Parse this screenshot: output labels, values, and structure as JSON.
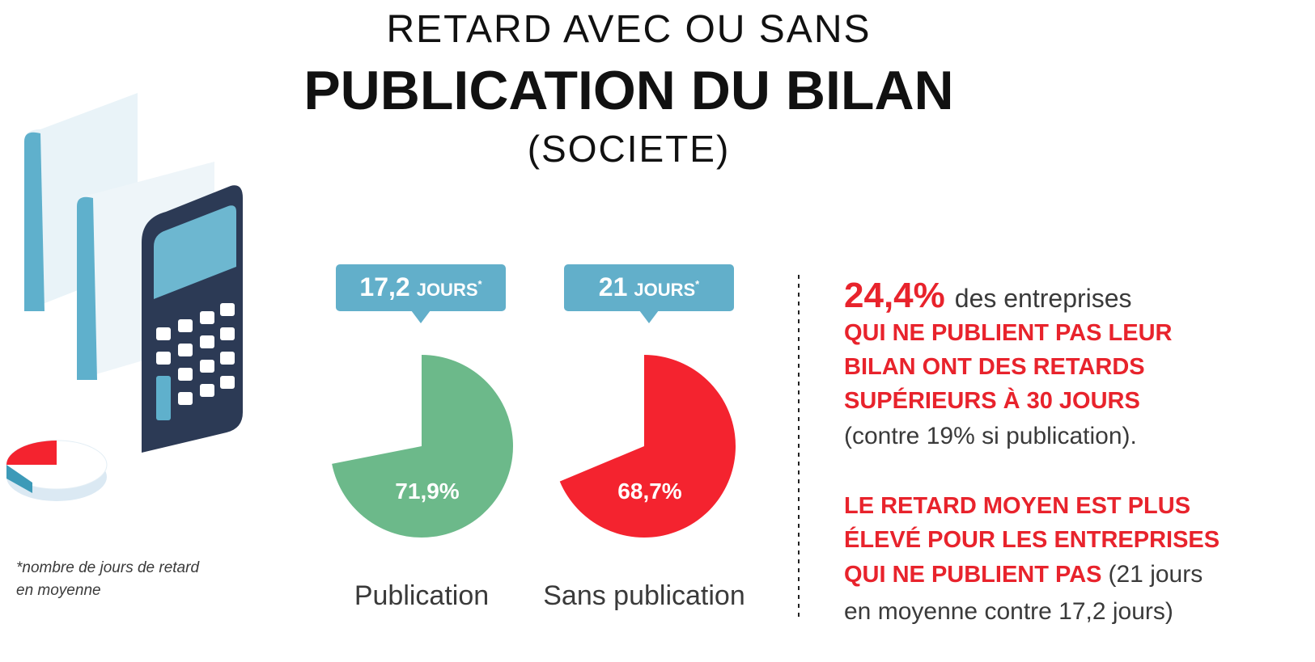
{
  "title_line1": "RETARD AVEC OU SANS",
  "title_line2": "PUBLICATION DU BILAN",
  "title_line3": "(SOCIETE)",
  "chart_data": [
    {
      "type": "pie",
      "label": "Publication",
      "values": [
        71.9
      ],
      "value_labels": [
        "71,9%"
      ],
      "color": "#6cb98a",
      "callout": {
        "value": "17,2",
        "unit": "JOURS",
        "note": "*"
      }
    },
    {
      "type": "pie",
      "label": "Sans publication",
      "values": [
        68.7
      ],
      "value_labels": [
        "68,7%"
      ],
      "color": "#f4232f",
      "callout": {
        "value": "21",
        "unit": "JOURS",
        "note": "*"
      }
    }
  ],
  "footnote": [
    "*nombre de jours de retard",
    "en moyenne"
  ],
  "highlight_1": {
    "stat": "24,4%",
    "stat_text": "des entreprises",
    "lines": [
      "QUI NE PUBLIENT PAS LEUR",
      "BILAN ONT DES RETARDS",
      "SUPÉRIEURS À 30 JOURS"
    ],
    "note": "(contre 19% si publication)."
  },
  "highlight_2": {
    "lines": [
      "LE RETARD MOYEN EST PLUS",
      "ÉLEVÉ POUR LES ENTREPRISES",
      "QUI NE PUBLIENT PAS"
    ],
    "note": [
      "(21 jours",
      "en moyenne contre 17,2 jours)"
    ]
  }
}
